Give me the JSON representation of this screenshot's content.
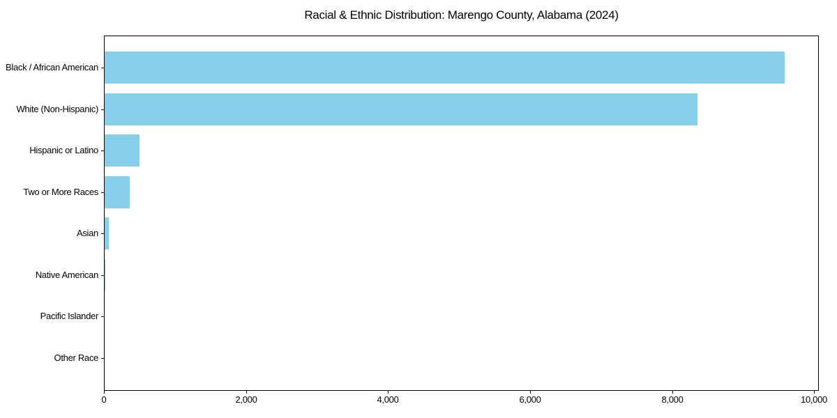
{
  "page": {
    "background_color": "#ffffff"
  },
  "chart_data": {
    "type": "bar",
    "orientation": "horizontal",
    "title": "Racial & Ethnic Distribution: Marengo County, Alabama (2024)",
    "categories": [
      "Black / African American",
      "White (Non-Hispanic)",
      "Hispanic or Latino",
      "Two or More Races",
      "Asian",
      "Native American",
      "Pacific Islander",
      "Other Race"
    ],
    "values": [
      9570,
      8345,
      495,
      350,
      60,
      10,
      0,
      0
    ],
    "xlabel": "",
    "ylabel": "",
    "xlim": [
      0,
      10045
    ],
    "xticks": [
      0,
      2000,
      4000,
      6000,
      8000,
      10000
    ],
    "xtick_labels": [
      "0",
      "2,000",
      "4,000",
      "6,000",
      "8,000",
      "10,000"
    ],
    "bar_color": "#87CEEB",
    "axis_color": "#000000",
    "text_color": "#000000",
    "grid": false,
    "legend": false
  }
}
